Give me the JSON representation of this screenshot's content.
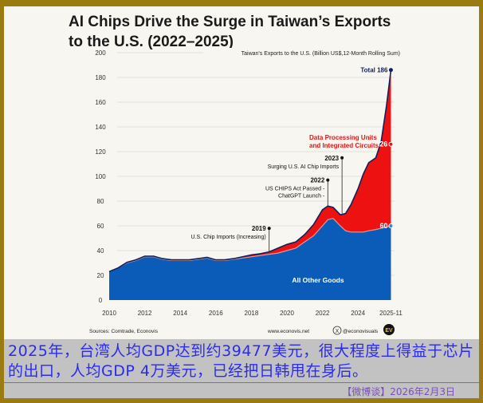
{
  "chart_data": {
    "type": "area",
    "title_lines": [
      "AI Chips Drive the Surge in Taiwan’s Exports",
      "to the U.S. (2022–2025)"
    ],
    "subtitle": "Taiwan's Exports to the U.S. (Billion US$,12-Month Rolling Sum)",
    "ylim": [
      0,
      200
    ],
    "yticks": [
      0,
      20,
      40,
      60,
      80,
      100,
      120,
      140,
      160,
      180,
      200
    ],
    "xticks": [
      {
        "v": 2010,
        "l": "2010"
      },
      {
        "v": 2012,
        "l": "2012"
      },
      {
        "v": 2014,
        "l": "2014"
      },
      {
        "v": 2016,
        "l": "2016"
      },
      {
        "v": 2018,
        "l": "2018"
      },
      {
        "v": 2020,
        "l": "2020"
      },
      {
        "v": 2022,
        "l": "2022"
      },
      {
        "v": 2024,
        "l": "2024"
      },
      {
        "v": 2025.85,
        "l": "2025-11"
      }
    ],
    "x": [
      2010,
      2010.5,
      2011,
      2011.5,
      2012,
      2012.5,
      2013,
      2013.5,
      2014,
      2014.5,
      2015,
      2015.5,
      2016,
      2016.5,
      2017,
      2017.5,
      2018,
      2018.5,
      2019,
      2019.5,
      2020,
      2020.5,
      2021,
      2021.5,
      2022,
      2022.3,
      2022.6,
      2023,
      2023.3,
      2023.6,
      2024,
      2024.3,
      2024.6,
      2025,
      2025.3,
      2025.6,
      2025.85
    ],
    "series": [
      {
        "name": "All Other Goods",
        "color": "#0a5cb8",
        "values": [
          23,
          26,
          30,
          32,
          35,
          35,
          33,
          32,
          32,
          32,
          33,
          34,
          32,
          32,
          33,
          34,
          35,
          36,
          37,
          38,
          40,
          42,
          47,
          52,
          60,
          65,
          66,
          60,
          56,
          55,
          55,
          55,
          56,
          57,
          58,
          59,
          60
        ]
      },
      {
        "name": "Data Processing Units and Integrated Circuits",
        "color": "#ee1111",
        "values": [
          0,
          0,
          0.5,
          0.5,
          0.5,
          0.5,
          0.5,
          0.5,
          0.5,
          0.5,
          0.5,
          0.5,
          0.5,
          0.5,
          0.5,
          1,
          1.5,
          1.5,
          2,
          4,
          5,
          5,
          6,
          9,
          13,
          11,
          9,
          9,
          14,
          22,
          35,
          47,
          55,
          58,
          70,
          98,
          126
        ]
      }
    ],
    "end_labels": {
      "total": "Total 186",
      "dpu": "126",
      "other": "60"
    },
    "series_labels": {
      "dpu": [
        "Data Processing Units",
        "and Integrated Circuits"
      ],
      "other": "All Other Goods"
    },
    "annotations": [
      {
        "x": 2019,
        "y": 58,
        "year": "2019",
        "text": [
          "U.S. Chip Imports (Increasing)"
        ]
      },
      {
        "x": 2022.3,
        "y": 97,
        "year": "2022",
        "text": [
          "US CHIPS Act Passed -",
          "ChatGPT Launch -"
        ]
      },
      {
        "x": 2023.1,
        "y": 115,
        "year": "2023",
        "text": [
          "Surging U.S. AI Chip Imports"
        ]
      }
    ],
    "source": "Sources: Comtrade, Econovis",
    "website": "www.econovis.net",
    "social": "@econovisuals",
    "logo": "EV"
  },
  "caption": "2025年，台湾人均GDP达到约39477美元，很大程度上得益于芯片的出口，人均GDP 4万美元，已经把日韩甩在身后。",
  "date": "【微博谈】2026年2月3日"
}
